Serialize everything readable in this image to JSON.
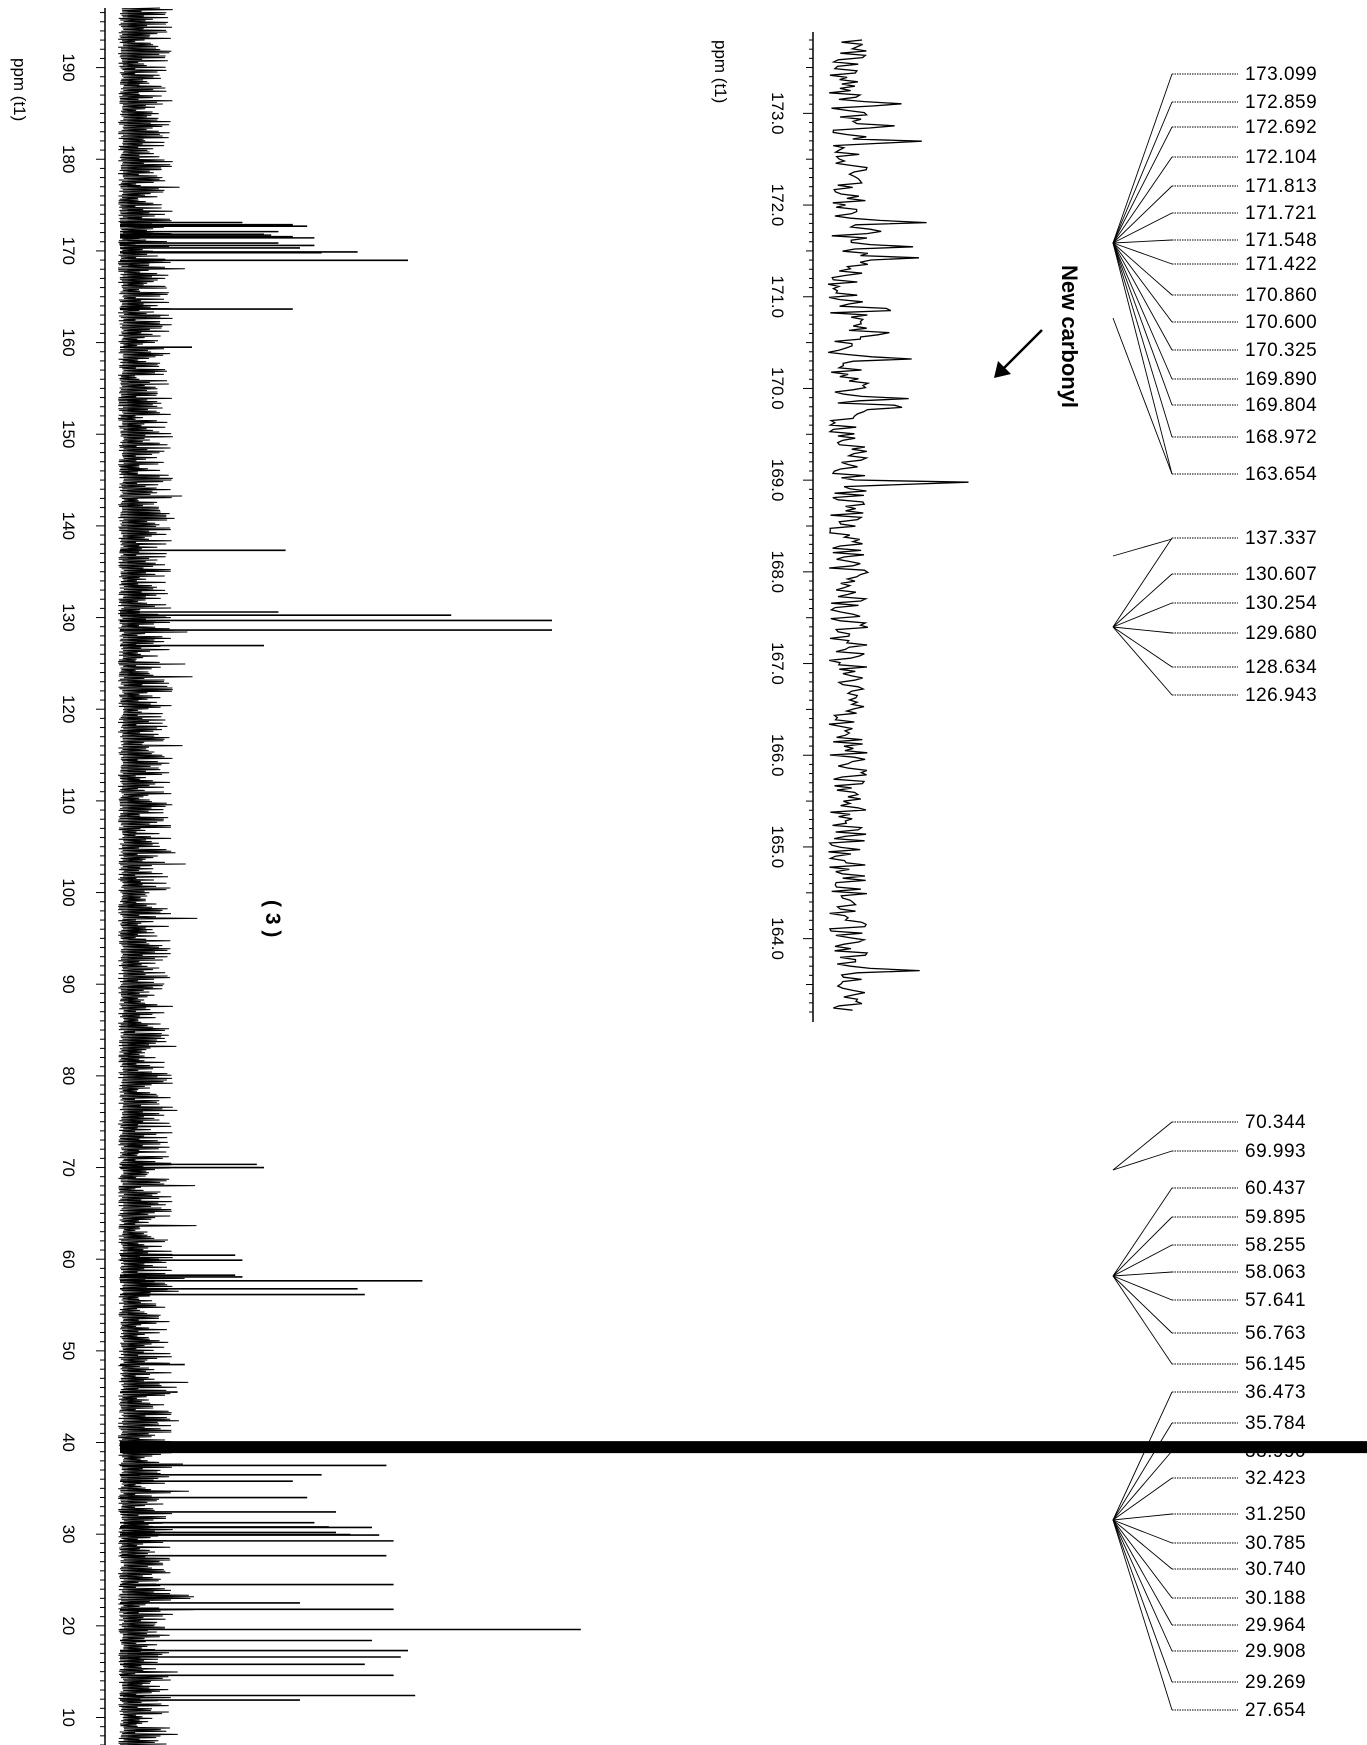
{
  "main_axis": {
    "label": "ppm (t1)",
    "tick_labels": [
      "190",
      "180",
      "170",
      "160",
      "150",
      "140",
      "130",
      "120",
      "110",
      "100",
      "90",
      "80",
      "70",
      "60",
      "50",
      "40",
      "30",
      "20",
      "10"
    ]
  },
  "inset_axis": {
    "label": "ppm (t1)",
    "tick_labels": [
      "173.0",
      "172.0",
      "171.0",
      "170.0",
      "169.0",
      "168.0",
      "167.0",
      "166.0",
      "165.0",
      "164.0"
    ]
  },
  "compound_label": "( 3 )",
  "annotation": "New carbonyl",
  "colors": {
    "line": "#000000",
    "background": "#ffffff"
  },
  "chart_data": {
    "type": "line",
    "subtype": "13C NMR spectrum, horizontal orientation (chemical shift runs vertically, intensity to the right)",
    "xlabel": "ppm (t1)",
    "x_axis_reversed": true,
    "main_xlim": [
      196.5,
      7.0
    ],
    "main_ticks": [
      190,
      180,
      170,
      160,
      150,
      140,
      130,
      120,
      110,
      100,
      90,
      80,
      70,
      60,
      50,
      40,
      30,
      20,
      10
    ],
    "inset": {
      "xlim": [
        173.8,
        163.2
      ],
      "ticks": [
        173.0,
        172.0,
        171.0,
        170.0,
        169.0,
        168.0,
        167.0,
        166.0,
        165.0,
        164.0
      ]
    },
    "peak_labels": [
      "173.099",
      "172.859",
      "172.692",
      "172.104",
      "171.813",
      "171.721",
      "171.548",
      "171.422",
      "170.860",
      "170.600",
      "170.325",
      "169.890",
      "169.804",
      "168.972",
      "163.654",
      "137.337",
      "130.607",
      "130.254",
      "129.680",
      "128.634",
      "126.943",
      "70.344",
      "69.993",
      "60.437",
      "59.895",
      "58.255",
      "58.063",
      "57.641",
      "56.763",
      "56.145",
      "36.473",
      "35.784",
      "33.990",
      "32.423",
      "31.250",
      "30.785",
      "30.740",
      "30.188",
      "29.964",
      "29.908",
      "29.269",
      "27.654"
    ],
    "peaks_main": [
      {
        "ppm": 173.099,
        "intensity": 0.17
      },
      {
        "ppm": 172.859,
        "intensity": 0.24
      },
      {
        "ppm": 172.692,
        "intensity": 0.26
      },
      {
        "ppm": 172.104,
        "intensity": 0.22
      },
      {
        "ppm": 171.813,
        "intensity": 0.2
      },
      {
        "ppm": 171.721,
        "intensity": 0.21
      },
      {
        "ppm": 171.548,
        "intensity": 0.24
      },
      {
        "ppm": 171.422,
        "intensity": 0.27
      },
      {
        "ppm": 170.86,
        "intensity": 0.22
      },
      {
        "ppm": 170.6,
        "intensity": 0.27
      },
      {
        "ppm": 170.325,
        "intensity": 0.25
      },
      {
        "ppm": 169.89,
        "intensity": 0.33
      },
      {
        "ppm": 169.804,
        "intensity": 0.28
      },
      {
        "ppm": 168.972,
        "intensity": 0.4
      },
      {
        "ppm": 163.654,
        "intensity": 0.24
      },
      {
        "ppm": 159.5,
        "intensity": 0.1
      },
      {
        "ppm": 137.337,
        "intensity": 0.23
      },
      {
        "ppm": 130.607,
        "intensity": 0.22
      },
      {
        "ppm": 130.254,
        "intensity": 0.46
      },
      {
        "ppm": 129.68,
        "intensity": 0.6
      },
      {
        "ppm": 128.634,
        "intensity": 0.6
      },
      {
        "ppm": 126.943,
        "intensity": 0.2
      },
      {
        "ppm": 70.344,
        "intensity": 0.19
      },
      {
        "ppm": 69.993,
        "intensity": 0.2
      },
      {
        "ppm": 60.437,
        "intensity": 0.16
      },
      {
        "ppm": 59.895,
        "intensity": 0.17
      },
      {
        "ppm": 58.255,
        "intensity": 0.16
      },
      {
        "ppm": 58.063,
        "intensity": 0.17
      },
      {
        "ppm": 57.641,
        "intensity": 0.42
      },
      {
        "ppm": 56.763,
        "intensity": 0.33
      },
      {
        "ppm": 56.145,
        "intensity": 0.34
      },
      {
        "ppm": 48.5,
        "intensity": 0.09
      },
      {
        "ppm": 45.5,
        "intensity": 0.08
      },
      {
        "ppm": 39.5,
        "intensity": 1.0
      },
      {
        "ppm": 37.5,
        "intensity": 0.37
      },
      {
        "ppm": 36.473,
        "intensity": 0.28
      },
      {
        "ppm": 35.784,
        "intensity": 0.24
      },
      {
        "ppm": 33.99,
        "intensity": 0.26
      },
      {
        "ppm": 32.423,
        "intensity": 0.3
      },
      {
        "ppm": 31.25,
        "intensity": 0.27
      },
      {
        "ppm": 30.785,
        "intensity": 0.29
      },
      {
        "ppm": 30.74,
        "intensity": 0.35
      },
      {
        "ppm": 30.188,
        "intensity": 0.3
      },
      {
        "ppm": 29.964,
        "intensity": 0.32
      },
      {
        "ppm": 29.908,
        "intensity": 0.36
      },
      {
        "ppm": 29.269,
        "intensity": 0.38
      },
      {
        "ppm": 27.654,
        "intensity": 0.37
      },
      {
        "ppm": 24.5,
        "intensity": 0.38
      },
      {
        "ppm": 22.5,
        "intensity": 0.25
      },
      {
        "ppm": 21.8,
        "intensity": 0.38
      },
      {
        "ppm": 19.6,
        "intensity": 0.64
      },
      {
        "ppm": 18.4,
        "intensity": 0.35
      },
      {
        "ppm": 17.3,
        "intensity": 0.4
      },
      {
        "ppm": 16.6,
        "intensity": 0.39
      },
      {
        "ppm": 15.8,
        "intensity": 0.34
      },
      {
        "ppm": 14.6,
        "intensity": 0.38
      },
      {
        "ppm": 12.4,
        "intensity": 0.41
      },
      {
        "ppm": 11.9,
        "intensity": 0.25
      }
    ],
    "peaks_inset": [
      {
        "ppm": 173.099,
        "intensity": 0.24
      },
      {
        "ppm": 172.859,
        "intensity": 0.21
      },
      {
        "ppm": 172.692,
        "intensity": 0.32
      },
      {
        "ppm": 171.813,
        "intensity": 0.34
      },
      {
        "ppm": 171.721,
        "intensity": 0.17
      },
      {
        "ppm": 171.548,
        "intensity": 0.27
      },
      {
        "ppm": 171.422,
        "intensity": 0.29
      },
      {
        "ppm": 170.86,
        "intensity": 0.25
      },
      {
        "ppm": 170.6,
        "intensity": 0.22
      },
      {
        "ppm": 170.325,
        "intensity": 0.27
      },
      {
        "ppm": 169.89,
        "intensity": 0.23
      },
      {
        "ppm": 169.804,
        "intensity": 0.31
      },
      {
        "ppm": 168.972,
        "intensity": 0.55
      },
      {
        "ppm": 163.654,
        "intensity": 0.29
      }
    ]
  }
}
